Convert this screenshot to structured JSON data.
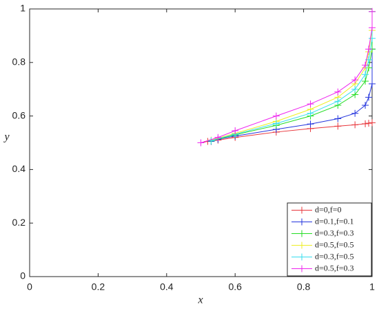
{
  "chart_data": {
    "type": "line",
    "xlabel": "x",
    "ylabel": "y",
    "xlim": [
      0,
      1
    ],
    "ylim": [
      0,
      1
    ],
    "xticks": [
      0,
      0.2,
      0.4,
      0.6,
      0.8,
      1
    ],
    "yticks": [
      0,
      0.2,
      0.4,
      0.6,
      0.8,
      1
    ],
    "legend": "lower right",
    "series": [
      {
        "name": "d=0,f=0",
        "color": "#e8343a",
        "x": [
          0.5,
          0.52,
          0.55,
          0.6,
          0.72,
          0.82,
          0.9,
          0.95,
          0.98,
          0.99,
          1
        ],
        "values": [
          0.5,
          0.505,
          0.51,
          0.52,
          0.54,
          0.553,
          0.562,
          0.567,
          0.571,
          0.573,
          0.575
        ]
      },
      {
        "name": "d=0.1,f=0.1",
        "color": "#2233dd",
        "x": [
          0.53,
          0.55,
          0.6,
          0.72,
          0.82,
          0.9,
          0.95,
          0.98,
          0.99,
          1,
          1,
          1
        ],
        "values": [
          0.505,
          0.513,
          0.525,
          0.55,
          0.57,
          0.59,
          0.61,
          0.64,
          0.67,
          0.72,
          0.85,
          0.99
        ]
      },
      {
        "name": "d=0.3,f=0.3",
        "color": "#22dd22",
        "x": [
          0.53,
          0.6,
          0.72,
          0.82,
          0.9,
          0.95,
          0.98,
          0.99,
          1,
          1
        ],
        "values": [
          0.507,
          0.53,
          0.565,
          0.6,
          0.64,
          0.68,
          0.73,
          0.78,
          0.85,
          0.99
        ]
      },
      {
        "name": "d=0.5,f=0.5",
        "color": "#eeee22",
        "x": [
          0.53,
          0.6,
          0.72,
          0.82,
          0.9,
          0.95,
          0.98,
          0.99,
          1,
          1
        ],
        "values": [
          0.51,
          0.535,
          0.58,
          0.625,
          0.67,
          0.72,
          0.78,
          0.84,
          0.92,
          0.99
        ]
      },
      {
        "name": "d=0.3,f=0.5",
        "color": "#33ddee",
        "x": [
          0.53,
          0.6,
          0.72,
          0.82,
          0.9,
          0.95,
          0.98,
          0.99,
          1,
          1
        ],
        "values": [
          0.508,
          0.532,
          0.572,
          0.61,
          0.655,
          0.7,
          0.755,
          0.81,
          0.89,
          0.99
        ]
      },
      {
        "name": "d=0.5,f=0.3",
        "color": "#ee22ee",
        "x": [
          0.5,
          0.55,
          0.6,
          0.72,
          0.82,
          0.9,
          0.95,
          0.98,
          0.99,
          1,
          1
        ],
        "values": [
          0.5,
          0.52,
          0.545,
          0.6,
          0.645,
          0.69,
          0.735,
          0.79,
          0.85,
          0.93,
          0.99
        ]
      }
    ]
  }
}
